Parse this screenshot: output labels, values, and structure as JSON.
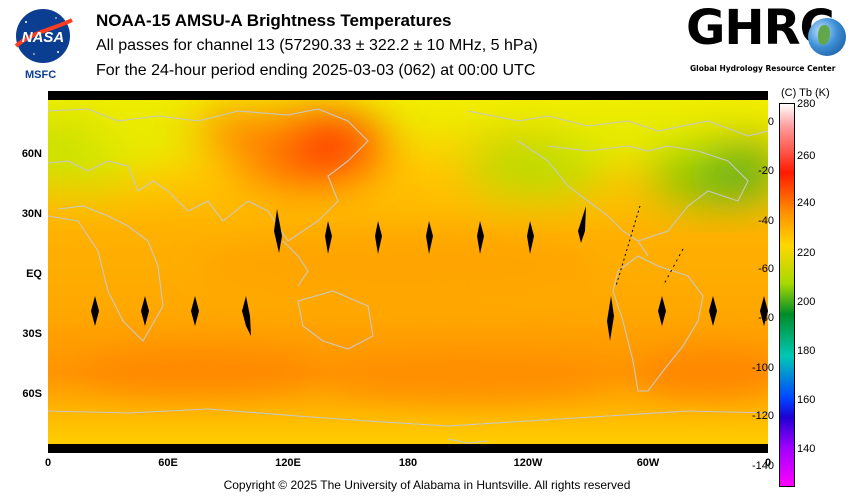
{
  "header": {
    "title": "NOAA-15 AMSU-A Brightness Temperatures",
    "line2": "All passes for channel 13 (57290.33 ± 322.2 ± 10 MHz, 5 hPa)",
    "line3": "For the 24-hour period ending 2025-03-03 (062) at 00:00 UTC"
  },
  "logos": {
    "nasa_text": "NASA",
    "nasa_sub": "MSFC",
    "ghrc_text": "GHRC",
    "ghrc_sub": "Global Hydrology Resource Center"
  },
  "map": {
    "lat_labels": [
      "60N",
      "30N",
      "EQ",
      "30S",
      "60S"
    ],
    "lon_labels": [
      "0",
      "60E",
      "120E",
      "180",
      "120W",
      "60W",
      "0"
    ],
    "colors": {
      "warm_core": "#ff2a00",
      "orange": "#ff9a00",
      "yellow": "#ffd200",
      "yellow_green": "#d8e800",
      "green": "#58b41e",
      "coastline": "#c8c8c8",
      "missing": "#000000"
    }
  },
  "colorbar": {
    "units": "(C)  Tb  (K)",
    "celsius_ticks": [
      "0",
      "-20",
      "-40",
      "-60",
      "-80",
      "-100",
      "-120",
      "-140"
    ],
    "kelvin_ticks": [
      "280",
      "260",
      "240",
      "220",
      "200",
      "180",
      "160",
      "140"
    ]
  },
  "footer": {
    "copyright": "Copyright © 2025 The University of Alabama in Huntsville.  All rights reserved"
  }
}
